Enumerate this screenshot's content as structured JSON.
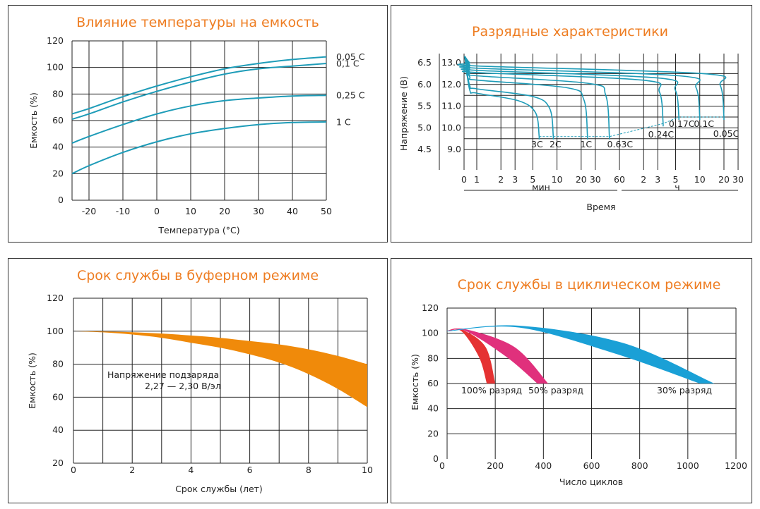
{
  "colors": {
    "title": "#ee7d22",
    "teal": "#1e9cb8",
    "orange": "#f08a0a",
    "red": "#e53232",
    "magenta": "#e0307c",
    "blue": "#1aa0d6"
  },
  "chart_data": [
    {
      "type": "line",
      "title": "Влияние температуры на емкость",
      "xlabel": "Температура (°C)",
      "ylabel": "Емкость (%)",
      "xlim": [
        -25,
        50
      ],
      "ylim": [
        0,
        120
      ],
      "x_ticks": [
        "-20",
        "-10",
        "0",
        "10",
        "20",
        "30",
        "40",
        "50"
      ],
      "y_ticks": [
        "0",
        "20",
        "40",
        "60",
        "80",
        "100",
        "120"
      ],
      "grid": true,
      "series": [
        {
          "name": "0,05 C",
          "x": [
            -25,
            -20,
            -10,
            0,
            10,
            20,
            30,
            40,
            50
          ],
          "values": [
            65,
            69,
            78,
            86,
            93,
            99,
            103,
            106,
            108
          ]
        },
        {
          "name": "0,1 C",
          "x": [
            -25,
            -20,
            -10,
            0,
            10,
            20,
            30,
            40,
            50
          ],
          "values": [
            61,
            65,
            74,
            82,
            89,
            95,
            99,
            101,
            103
          ]
        },
        {
          "name": "0,25 C",
          "x": [
            -25,
            -20,
            -10,
            0,
            10,
            20,
            30,
            40,
            50
          ],
          "values": [
            43,
            48,
            57,
            65,
            71,
            75,
            77,
            78.5,
            79
          ]
        },
        {
          "name": "1 C",
          "x": [
            -25,
            -20,
            -10,
            0,
            10,
            20,
            30,
            40,
            50
          ],
          "values": [
            20,
            26,
            36,
            44,
            50,
            54,
            57,
            58.5,
            59
          ]
        }
      ]
    },
    {
      "type": "line",
      "title": "Разрядные характеристики",
      "xlabel": "Время",
      "ylabel": "Напряжение (В)",
      "x_ticks_min": [
        "0",
        "1",
        "2",
        "3",
        "5",
        "10",
        "20",
        "30",
        "60"
      ],
      "x_ticks_h": [
        "2",
        "3",
        "5",
        "10",
        "20",
        "30"
      ],
      "x_unit_min": "мин",
      "x_unit_h": "ч",
      "y_ticks_left": [
        "6.5",
        "6.0",
        "5.5",
        "5.0",
        "4.5"
      ],
      "y_ticks_right": [
        "13.0",
        "12.0",
        "11.0",
        "10.0",
        "9.0"
      ],
      "ylim": [
        8.0,
        13.4
      ],
      "grid": true,
      "series": [
        {
          "name": "3C",
          "end_time_min": 6,
          "end_voltage": 9.6
        },
        {
          "name": "2C",
          "end_time_min": 9,
          "end_voltage": 9.6
        },
        {
          "name": "1C",
          "end_time_min": 24,
          "end_voltage": 9.6
        },
        {
          "name": "0.63C",
          "end_time_min": 45,
          "end_voltage": 9.6
        },
        {
          "name": "0.24C",
          "end_time_min": 210,
          "end_voltage": 10.2
        },
        {
          "name": "0.17C",
          "end_time_min": 330,
          "end_voltage": 10.5
        },
        {
          "name": "0.1C",
          "end_time_min": 600,
          "end_voltage": 10.5
        },
        {
          "name": "0.05C",
          "end_time_min": 1200,
          "end_voltage": 10.5
        }
      ]
    },
    {
      "type": "area",
      "title": "Срок службы в буферном режиме",
      "xlabel": "Срок службы (лет)",
      "ylabel": "Емкость (%)",
      "xlim": [
        0,
        10
      ],
      "ylim": [
        20,
        120
      ],
      "x_ticks": [
        "0",
        "2",
        "4",
        "6",
        "8",
        "10"
      ],
      "y_ticks": [
        "20",
        "40",
        "60",
        "80",
        "100",
        "120"
      ],
      "grid": true,
      "annotation": [
        "Напряжение подзаряда",
        "2,27 — 2,30 В/эл"
      ],
      "band": {
        "x": [
          0,
          1,
          2,
          3,
          4,
          5,
          6,
          7,
          8,
          9,
          10
        ],
        "upper": [
          100,
          99.8,
          99.4,
          98.6,
          97.4,
          96,
          94,
          92,
          89,
          85,
          80
        ],
        "lower": [
          100,
          99.3,
          98,
          96,
          93,
          90,
          86,
          81,
          74,
          65,
          54
        ]
      }
    },
    {
      "type": "area",
      "title": "Срок службы в циклическом режиме",
      "xlabel": "Число циклов",
      "ylabel": "Емкость (%)",
      "xlim": [
        0,
        1200
      ],
      "ylim": [
        0,
        120
      ],
      "x_ticks": [
        "0",
        "200",
        "400",
        "600",
        "800",
        "1000",
        "1200"
      ],
      "y_ticks": [
        "0",
        "20",
        "40",
        "60",
        "80",
        "100",
        "120"
      ],
      "grid": true,
      "series": [
        {
          "name": "100% разряд",
          "upper_end": 200,
          "lower_end": 165,
          "peak": 103
        },
        {
          "name": "50% разряд",
          "upper_end": 420,
          "lower_end": 375,
          "peak": 103
        },
        {
          "name": "30% разряд",
          "upper_end": 1110,
          "lower_end": 1050,
          "peak": 106
        }
      ]
    }
  ]
}
